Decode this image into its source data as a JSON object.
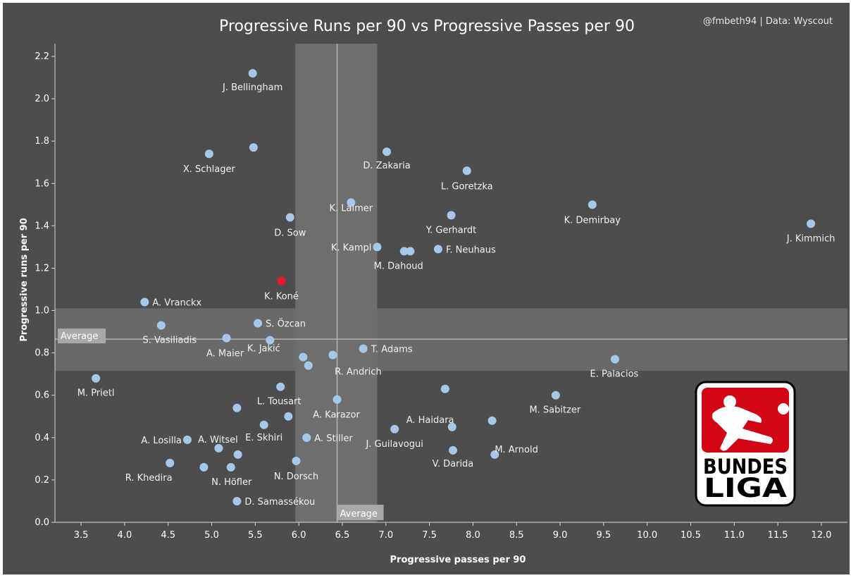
{
  "credit": "@fmbeth94 | Data: Wyscout",
  "logo": {
    "line1": "BUNDES",
    "line2": "LIGA",
    "colors": {
      "red": "#d20515",
      "black": "#000000"
    }
  },
  "colors": {
    "background": "#4d4d4d",
    "point": "#a6c8e8",
    "highlight": "#e8192c",
    "band": "#6e6e6e",
    "avg_line": "#b5b5b5",
    "text": "#ffffff",
    "label": "#f2f2f2"
  },
  "chart_data": {
    "type": "scatter",
    "title": "Progressive Runs per 90 vs Progressive Passes per 90",
    "xlabel": "Progressive passes per 90",
    "ylabel": "Progressive runs per 90",
    "xlim": [
      3.2,
      12.3
    ],
    "ylim": [
      0.0,
      2.26
    ],
    "xticks": [
      "3.5",
      "4.0",
      "4.5",
      "5.0",
      "5.5",
      "6.0",
      "6.5",
      "7.0",
      "7.5",
      "8.0",
      "8.5",
      "9.0",
      "9.5",
      "10.0",
      "10.5",
      "11.0",
      "11.5",
      "12.0"
    ],
    "yticks": [
      "0.0",
      "0.2",
      "0.4",
      "0.6",
      "0.8",
      "1.0",
      "1.2",
      "1.4",
      "1.6",
      "1.8",
      "2.0",
      "2.2"
    ],
    "grid": false,
    "average": {
      "label": "Average",
      "x": 6.44,
      "y": 0.865,
      "x_band": [
        5.96,
        6.9
      ],
      "y_band": [
        0.715,
        1.01
      ]
    },
    "points": [
      {
        "label": "J. Bellingham",
        "x": 5.47,
        "y": 2.12
      },
      {
        "label": "",
        "x": 5.48,
        "y": 1.77
      },
      {
        "label": "X. Schlager",
        "x": 4.97,
        "y": 1.74
      },
      {
        "label": "D. Zakaria",
        "x": 7.01,
        "y": 1.75
      },
      {
        "label": "L. Goretzka",
        "x": 7.93,
        "y": 1.66
      },
      {
        "label": "K. Laimer",
        "x": 6.6,
        "y": 1.51
      },
      {
        "label": "K. Demirbay",
        "x": 9.37,
        "y": 1.5
      },
      {
        "label": "D. Sow",
        "x": 5.9,
        "y": 1.44
      },
      {
        "label": "Y. Gerhardt",
        "x": 7.75,
        "y": 1.45
      },
      {
        "label": "J. Kimmich",
        "x": 11.88,
        "y": 1.41
      },
      {
        "label": "K. Kampl",
        "x": 6.9,
        "y": 1.3
      },
      {
        "label": "M. Dahoud",
        "x": 7.21,
        "y": 1.28
      },
      {
        "label": "",
        "x": 7.28,
        "y": 1.28
      },
      {
        "label": "F. Neuhaus",
        "x": 7.6,
        "y": 1.29
      },
      {
        "label": "K. Koné",
        "x": 5.8,
        "y": 1.14,
        "highlight": true
      },
      {
        "label": "A. Vranckx",
        "x": 4.23,
        "y": 1.04
      },
      {
        "label": "S. Özcan",
        "x": 5.53,
        "y": 0.94
      },
      {
        "label": "S. Vasiliadis",
        "x": 4.42,
        "y": 0.93
      },
      {
        "label": "A. Maier",
        "x": 5.17,
        "y": 0.87
      },
      {
        "label": "K. Jakić",
        "x": 5.67,
        "y": 0.86
      },
      {
        "label": "T. Adams",
        "x": 6.74,
        "y": 0.82
      },
      {
        "label": "R. Andrich",
        "x": 6.39,
        "y": 0.79
      },
      {
        "label": "",
        "x": 6.05,
        "y": 0.78
      },
      {
        "label": "",
        "x": 6.11,
        "y": 0.74
      },
      {
        "label": "E. Palacios",
        "x": 9.63,
        "y": 0.77
      },
      {
        "label": "M. Prietl",
        "x": 3.67,
        "y": 0.68
      },
      {
        "label": "L. Tousart",
        "x": 5.79,
        "y": 0.64
      },
      {
        "label": "",
        "x": 7.68,
        "y": 0.63
      },
      {
        "label": "M. Sabitzer",
        "x": 8.95,
        "y": 0.6
      },
      {
        "label": "A. Karazor",
        "x": 6.44,
        "y": 0.58
      },
      {
        "label": "",
        "x": 5.29,
        "y": 0.54
      },
      {
        "label": "",
        "x": 5.88,
        "y": 0.5
      },
      {
        "label": "A. Haidara",
        "x": 8.22,
        "y": 0.48
      },
      {
        "label": "E. Skhiri",
        "x": 5.6,
        "y": 0.46
      },
      {
        "label": "",
        "x": 7.76,
        "y": 0.45
      },
      {
        "label": "J. Guilavogui",
        "x": 7.1,
        "y": 0.44
      },
      {
        "label": "A. Stiller",
        "x": 6.09,
        "y": 0.4
      },
      {
        "label": "A. Witsel",
        "x": 5.08,
        "y": 0.35
      },
      {
        "label": "A. Losilla",
        "x": 4.72,
        "y": 0.39
      },
      {
        "label": "M. Arnold",
        "x": 8.25,
        "y": 0.32
      },
      {
        "label": "V. Darida",
        "x": 7.77,
        "y": 0.34
      },
      {
        "label": "",
        "x": 5.3,
        "y": 0.32
      },
      {
        "label": "N. Dorsch",
        "x": 5.97,
        "y": 0.29
      },
      {
        "label": "R. Khedira",
        "x": 4.52,
        "y": 0.28
      },
      {
        "label": "N. Höfler",
        "x": 5.22,
        "y": 0.26
      },
      {
        "label": "",
        "x": 4.91,
        "y": 0.26
      },
      {
        "label": "D. Samassékou",
        "x": 5.29,
        "y": 0.1
      }
    ]
  }
}
